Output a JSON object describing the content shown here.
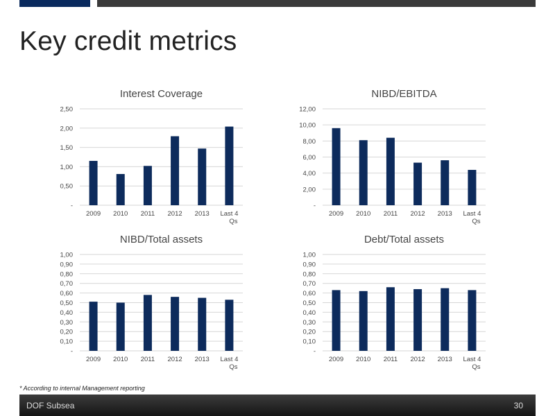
{
  "page": {
    "title": "Key credit metrics",
    "footnote": "* According to internal Management reporting",
    "footer_left": "DOF Subsea",
    "footer_right": "30"
  },
  "colors": {
    "bar": "#0d2b5c",
    "grid": "#d6d6d6",
    "top_accent": "#0a2a5e"
  },
  "chart_data": [
    {
      "type": "bar",
      "title": "Interest Coverage",
      "categories": [
        "2009",
        "2010",
        "2011",
        "2012",
        "2013",
        "Last 4 Qs"
      ],
      "values": [
        1.15,
        0.81,
        1.02,
        1.79,
        1.47,
        2.04
      ],
      "ylim": [
        0,
        2.5
      ],
      "yticks": [
        "-",
        "0,50",
        "1,00",
        "1,50",
        "2,00",
        "2,50"
      ],
      "grid": true
    },
    {
      "type": "bar",
      "title": "NIBD/EBITDA",
      "categories": [
        "2009",
        "2010",
        "2011",
        "2012",
        "2013",
        "Last 4 Qs"
      ],
      "values": [
        9.6,
        8.1,
        8.4,
        5.3,
        5.6,
        4.4
      ],
      "ylim": [
        0,
        12
      ],
      "yticks": [
        "-",
        "2,00",
        "4,00",
        "6,00",
        "8,00",
        "10,00",
        "12,00"
      ],
      "grid": true
    },
    {
      "type": "bar",
      "title": "NIBD/Total assets",
      "categories": [
        "2009",
        "2010",
        "2011",
        "2012",
        "2013",
        "Last 4 Qs"
      ],
      "values": [
        0.51,
        0.5,
        0.58,
        0.56,
        0.55,
        0.53
      ],
      "ylim": [
        0,
        1
      ],
      "yticks": [
        "-",
        "0,10",
        "0,20",
        "0,30",
        "0,40",
        "0,50",
        "0,60",
        "0,70",
        "0,80",
        "0,90",
        "1,00"
      ],
      "grid": true
    },
    {
      "type": "bar",
      "title": "Debt/Total assets",
      "categories": [
        "2009",
        "2010",
        "2011",
        "2012",
        "2013",
        "Last 4 Qs"
      ],
      "values": [
        0.63,
        0.62,
        0.66,
        0.64,
        0.65,
        0.63
      ],
      "ylim": [
        0,
        1
      ],
      "yticks": [
        "-",
        "0,10",
        "0,20",
        "0,30",
        "0,40",
        "0,50",
        "0,60",
        "0,70",
        "0,80",
        "0,90",
        "1,00"
      ],
      "grid": true
    }
  ]
}
